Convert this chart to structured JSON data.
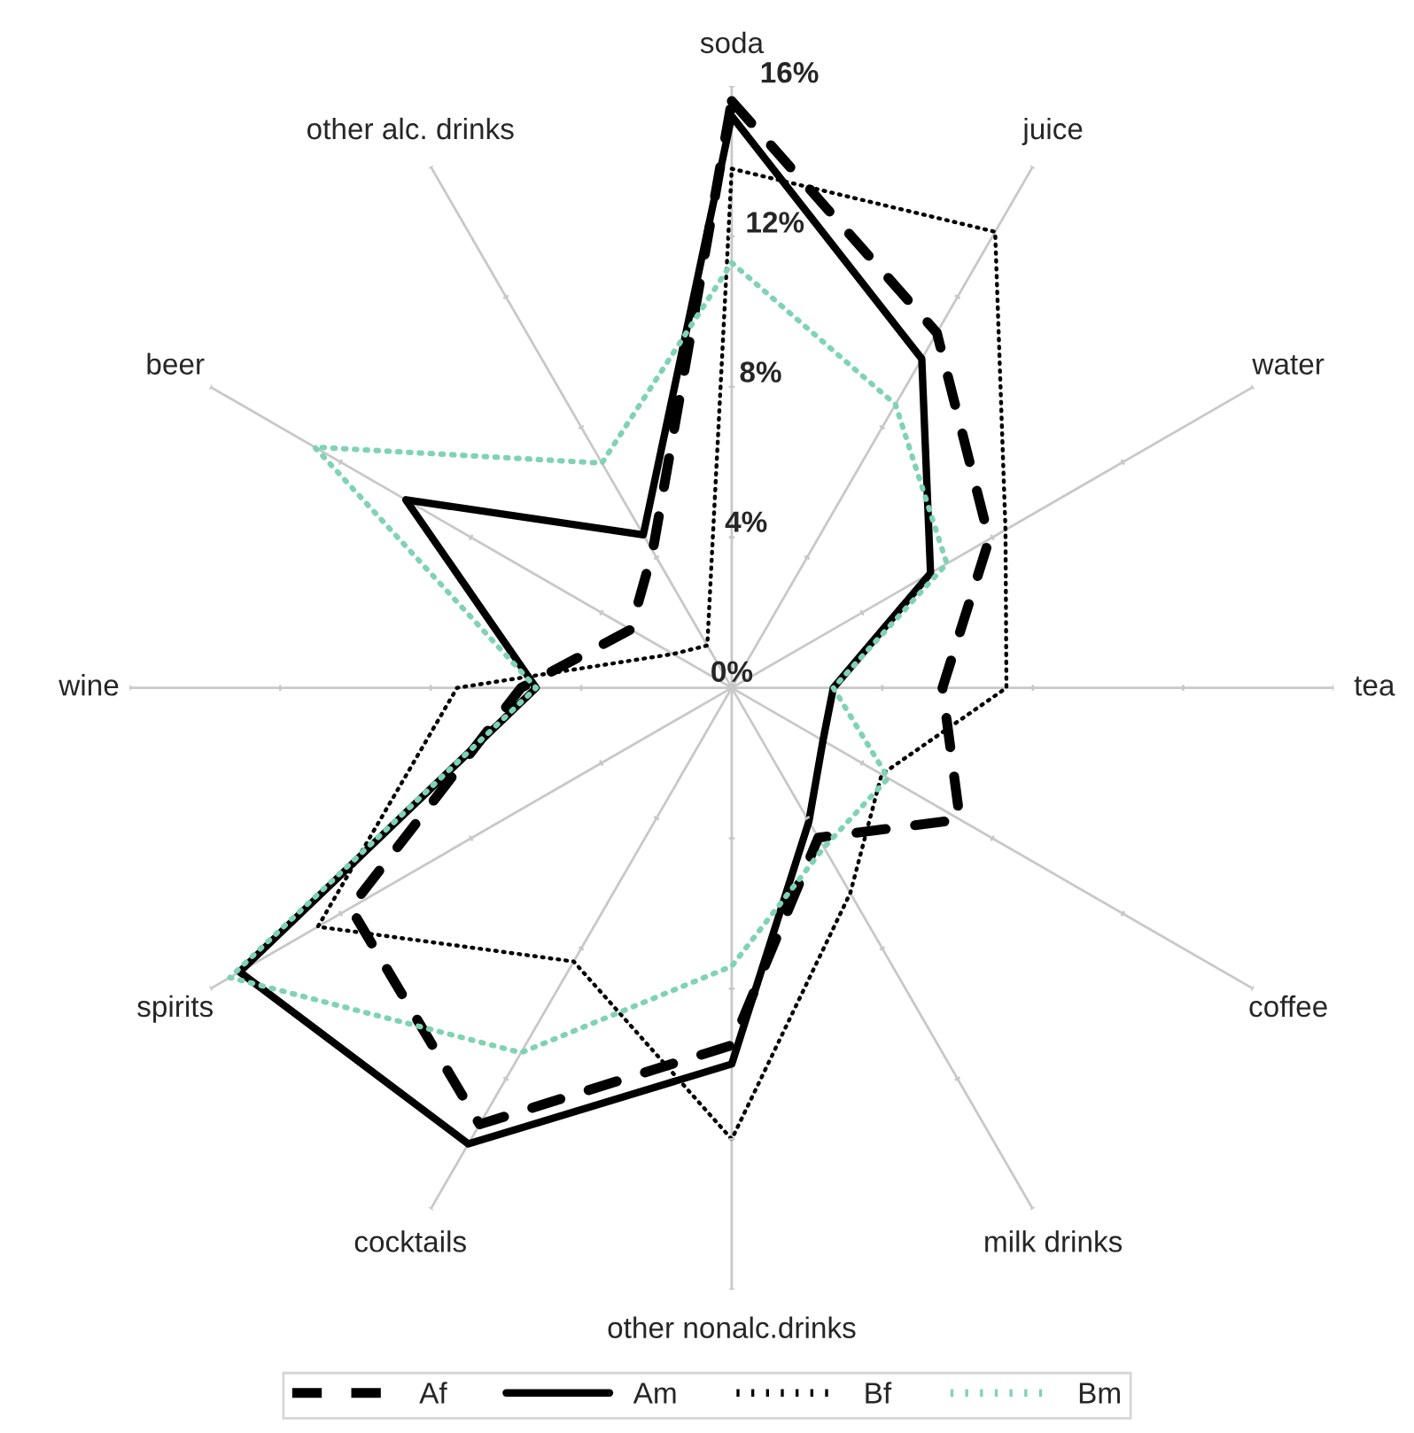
{
  "chart_data": {
    "type": "radar",
    "categories": [
      "soda",
      "juice",
      "water",
      "tea",
      "coffee",
      "milk drinks",
      "other nonalc.drinks",
      "cocktails",
      "spirits",
      "wine",
      "beer",
      "other alc. drinks"
    ],
    "ylim": [
      0,
      16
    ],
    "yticks": [
      {
        "value": 0,
        "label": "0%"
      },
      {
        "value": 4,
        "label": "4%"
      },
      {
        "value": 8,
        "label": "8%"
      },
      {
        "value": 12,
        "label": "12%"
      },
      {
        "value": 16,
        "label": "16%"
      }
    ],
    "grid": "x",
    "legend": "bottom",
    "marker": "none",
    "series": [
      {
        "name": "Af",
        "color": "#000000",
        "line_style": "dashed",
        "values": [
          15.6,
          10.9,
          7.9,
          5.6,
          7.0,
          4.6,
          9.5,
          13.4,
          11.7,
          5.6,
          3.1,
          4.2
        ]
      },
      {
        "name": "Am",
        "color": "#000000",
        "line_style": "solid",
        "values": [
          15.2,
          10.1,
          6.1,
          2.7,
          2.8,
          4.1,
          10.0,
          14.0,
          15.1,
          5.2,
          10.0,
          4.7
        ]
      },
      {
        "name": "Bf",
        "color": "#000000",
        "line_style": "dotted",
        "values": [
          13.8,
          14.0,
          8.4,
          7.3,
          4.6,
          6.3,
          12.0,
          8.4,
          12.7,
          7.3,
          1.8,
          1.3
        ]
      },
      {
        "name": "Bm",
        "color": "#7fd3b4",
        "line_style": "dotted",
        "values": [
          11.3,
          8.7,
          6.6,
          2.7,
          4.8,
          4.9,
          7.4,
          11.2,
          15.4,
          5.2,
          12.8,
          6.9
        ]
      }
    ]
  }
}
